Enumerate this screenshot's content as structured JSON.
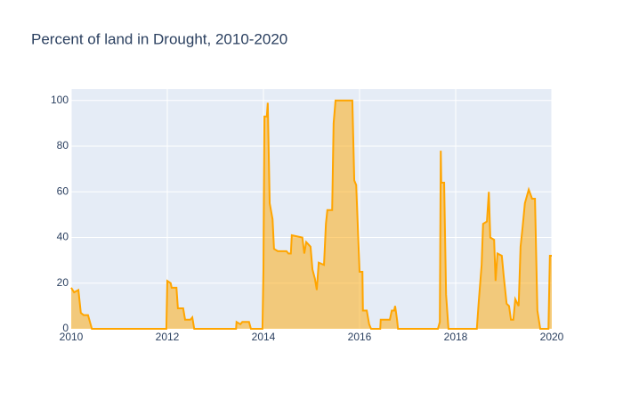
{
  "chart_data": {
    "type": "area",
    "title": "Percent of land in Drought, 2010-2020",
    "x": [
      2010.0,
      2010.06,
      2010.15,
      2010.2,
      2010.26,
      2010.35,
      2010.43,
      2011.98,
      2012.0,
      2012.07,
      2012.09,
      2012.19,
      2012.22,
      2012.33,
      2012.37,
      2012.48,
      2012.52,
      2012.56,
      2013.43,
      2013.44,
      2013.52,
      2013.56,
      2013.7,
      2013.74,
      2013.98,
      2014.0,
      2014.02,
      2014.07,
      2014.09,
      2014.13,
      2014.19,
      2014.22,
      2014.3,
      2014.48,
      2014.52,
      2014.57,
      2014.59,
      2014.81,
      2014.85,
      2014.89,
      2014.98,
      2015.02,
      2015.07,
      2015.11,
      2015.15,
      2015.26,
      2015.3,
      2015.33,
      2015.43,
      2015.46,
      2015.5,
      2015.85,
      2015.89,
      2015.93,
      2016.0,
      2016.06,
      2016.07,
      2016.15,
      2016.2,
      2016.24,
      2016.43,
      2016.44,
      2016.63,
      2016.67,
      2016.72,
      2016.74,
      2016.78,
      2016.8,
      2017.63,
      2017.67,
      2017.69,
      2017.7,
      2017.76,
      2017.8,
      2017.85,
      2018.44,
      2018.48,
      2018.54,
      2018.57,
      2018.65,
      2018.69,
      2018.72,
      2018.8,
      2018.83,
      2018.87,
      2018.96,
      2019.0,
      2019.06,
      2019.11,
      2019.15,
      2019.2,
      2019.24,
      2019.31,
      2019.35,
      2019.39,
      2019.44,
      2019.52,
      2019.59,
      2019.65,
      2019.7,
      2019.76,
      2019.93,
      2019.96,
      2020.0
    ],
    "values": [
      18,
      16,
      17,
      7,
      6,
      6,
      0,
      0,
      21,
      20,
      18,
      18,
      9,
      9,
      4,
      4,
      5,
      0,
      0,
      3,
      2,
      3,
      3,
      0,
      0,
      26,
      93,
      93,
      99,
      55,
      48,
      35,
      34,
      34,
      33,
      33,
      41,
      40,
      33,
      38,
      36,
      26,
      22,
      17,
      29,
      28,
      46,
      52,
      52,
      90,
      100,
      100,
      65,
      63,
      25,
      25,
      8,
      8,
      2,
      0,
      0,
      4,
      4,
      8,
      8,
      10,
      4,
      0,
      0,
      3,
      78,
      64,
      64,
      15,
      0,
      0,
      12,
      28,
      46,
      47,
      60,
      40,
      39,
      21,
      33,
      32,
      23,
      11,
      10,
      4,
      4,
      13,
      10,
      36,
      44,
      55,
      61,
      57,
      57,
      8,
      0,
      0,
      32,
      32
    ],
    "color": "#ffa500",
    "xlim": [
      2010,
      2020
    ],
    "xticks": [
      2010,
      2012,
      2014,
      2016,
      2018,
      2020
    ],
    "ylim": [
      0,
      105
    ],
    "yticks": [
      0,
      20,
      40,
      60,
      80,
      100
    ],
    "grid": true
  }
}
